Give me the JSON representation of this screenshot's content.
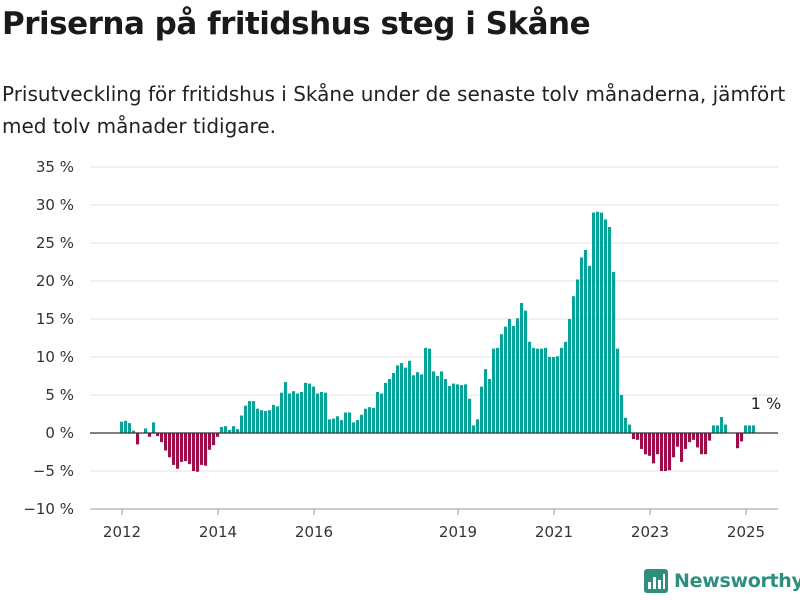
{
  "title": "Priserna på fritidshus steg i Skåne",
  "subtitle": "Prisutveckling för fritidshus i Skåne under de senaste tolv månaderna, jämfört med tolv månader tidigare.",
  "brand": "Newsworthy",
  "colors": {
    "positive": "#05a398",
    "negative": "#9e0d4a",
    "grid": "#e3e3e3",
    "zero": "#333333",
    "brand": "#2e8f7e"
  },
  "chart_data": {
    "type": "bar",
    "ylim": [
      -10,
      35
    ],
    "yticks": [
      -10,
      -5,
      0,
      5,
      10,
      15,
      20,
      25,
      30,
      35
    ],
    "ytick_labels": [
      "−10 %",
      "−5 %",
      "0 %",
      "5 %",
      "10 %",
      "15 %",
      "20 %",
      "25 %",
      "30 %",
      "35 %"
    ],
    "xticks": [
      "2012",
      "2014",
      "2016",
      "2019",
      "2021",
      "2023",
      "2025"
    ],
    "xtick_positions": [
      "2012-01",
      "2014-01",
      "2016-01",
      "2019-01",
      "2021-01",
      "2023-01",
      "2025-01"
    ],
    "annotation": {
      "label": "1 %",
      "at": "2025-05"
    },
    "series": [
      {
        "start": "2012-01",
        "frequency": "monthly",
        "values": [
          1.5,
          1.6,
          1.3,
          0.3,
          -1.5,
          0,
          0.6,
          -0.5,
          1.4,
          -0.4,
          -1.2,
          -2.3,
          -3.2,
          -4.2,
          -4.7,
          -3.8,
          -3.7,
          -4.1,
          -5.0,
          -5.1,
          -4.2,
          -4.3,
          -2.2,
          -1.6,
          -0.5,
          0.8,
          0.9,
          0.4,
          0.9,
          0.5,
          2.3,
          3.6,
          4.2,
          4.2,
          3.2,
          3.0,
          2.9,
          3.0,
          3.7,
          3.5,
          5.3,
          6.7,
          5.2,
          5.5,
          5.2,
          5.4,
          6.6,
          6.5,
          6.1,
          5.2,
          5.4,
          5.3,
          1.8,
          1.9,
          2.2,
          1.7,
          2.7,
          2.7,
          1.4,
          1.7,
          2.4,
          3.2,
          3.4,
          3.3,
          5.4,
          5.2,
          6.6,
          7.1,
          7.9,
          8.9,
          9.2,
          8.6,
          9.5,
          7.6,
          8.0,
          7.7,
          11.2,
          11.1,
          8.1,
          7.5,
          8.1,
          7.1,
          6.2,
          6.5,
          6.4,
          6.3,
          6.4,
          4.5,
          1.0,
          1.8,
          6.1,
          8.4,
          7.1,
          11.1,
          11.2,
          13.0,
          14.0,
          15.0,
          14.1,
          15.1,
          17.1,
          16.1,
          12.0,
          11.2,
          11.1,
          11.1,
          11.2,
          10.0,
          10.0,
          10.1,
          11.2,
          12.0,
          15.0,
          18.0,
          20.2,
          23.1,
          24.1,
          22.0,
          29.0,
          29.1,
          29.0,
          28.1,
          27.1,
          21.2,
          11.1,
          5.0,
          2.0,
          1.1,
          -0.8,
          -0.9,
          -2.1,
          -2.8,
          -3.0,
          -4.0,
          -2.8,
          -5.0,
          -5.0,
          -4.9,
          -3.2,
          -1.8,
          -3.8,
          -2.1,
          -1.2,
          -0.9,
          -1.9,
          -2.8,
          -2.8,
          -1.0,
          1.0,
          1.0,
          2.1,
          1.1,
          0,
          0,
          -2.0,
          -1.1,
          1.0,
          1.0,
          1.0
        ]
      }
    ]
  }
}
